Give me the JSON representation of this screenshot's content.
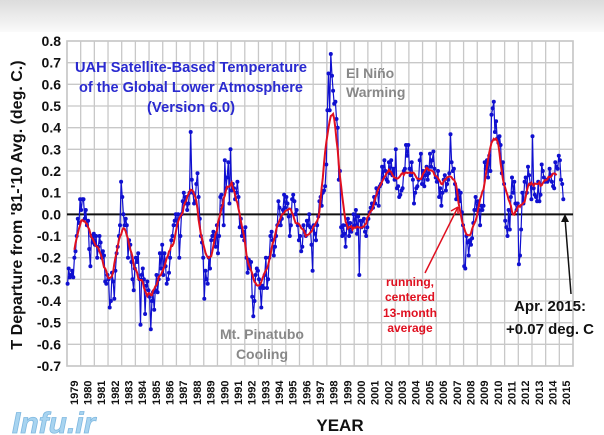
{
  "chart_data": {
    "type": "line",
    "title": [
      "UAH Satellite-Based Temperature",
      "of the Global Lower Atmosphere",
      "(Version 6.0)"
    ],
    "xlabel": "YEAR",
    "ylabel": "T Departure from '81-'10 Avg. (deg. C.)",
    "ylim": [
      -0.7,
      0.8
    ],
    "xlim": [
      1979,
      2016
    ],
    "y_ticks": [
      "0.8",
      "0.7",
      "0.6",
      "0.5",
      "0.4",
      "0.3",
      "0.2",
      "0.1",
      "0.0",
      "-0.1",
      "-0.2",
      "-0.3",
      "-0.4",
      "-0.5",
      "-0.6",
      "-0.7"
    ],
    "x_ticks": [
      "1979",
      "1980",
      "1981",
      "1982",
      "1983",
      "1984",
      "1985",
      "1986",
      "1987",
      "1988",
      "1989",
      "1990",
      "1991",
      "1992",
      "1993",
      "1994",
      "1995",
      "1996",
      "1997",
      "1998",
      "1999",
      "2000",
      "2001",
      "2002",
      "2003",
      "2004",
      "2005",
      "2006",
      "2007",
      "2008",
      "2009",
      "2010",
      "2011",
      "2012",
      "2013",
      "2014",
      "2015"
    ],
    "grid": true,
    "start": "1979-01",
    "series": [
      {
        "kind": "monthly",
        "color": "#1010d0",
        "values": [
          -0.32,
          -0.25,
          -0.29,
          -0.28,
          -0.26,
          -0.29,
          -0.2,
          -0.17,
          -0.1,
          -0.02,
          -0.04,
          0.07,
          0.02,
          0.07,
          0.07,
          -0.02,
          0.02,
          -0.05,
          -0.03,
          -0.16,
          -0.24,
          -0.1,
          -0.13,
          -0.09,
          -0.14,
          -0.1,
          -0.2,
          -0.15,
          -0.1,
          -0.13,
          -0.2,
          -0.17,
          -0.19,
          -0.31,
          -0.32,
          -0.28,
          -0.3,
          -0.43,
          -0.4,
          -0.27,
          -0.31,
          -0.39,
          -0.26,
          -0.18,
          -0.15,
          -0.1,
          -0.05,
          0.15,
          0.08,
          0.0,
          -0.05,
          -0.02,
          -0.05,
          -0.2,
          -0.12,
          -0.14,
          -0.22,
          -0.3,
          -0.35,
          -0.25,
          -0.2,
          -0.22,
          -0.18,
          -0.3,
          -0.51,
          -0.28,
          -0.25,
          -0.3,
          -0.46,
          -0.33,
          -0.31,
          -0.35,
          -0.38,
          -0.53,
          -0.4,
          -0.36,
          -0.44,
          -0.35,
          -0.28,
          -0.36,
          -0.3,
          -0.18,
          -0.25,
          -0.14,
          -0.28,
          -0.18,
          -0.24,
          -0.32,
          -0.3,
          -0.27,
          -0.2,
          -0.12,
          -0.1,
          -0.05,
          -0.03,
          0.0,
          -0.05,
          0.0,
          -0.2,
          -0.1,
          0.0,
          0.06,
          0.1,
          0.05,
          0.08,
          0.02,
          0.05,
          0.1,
          0.38,
          0.16,
          0.1,
          0.05,
          0.06,
          0.14,
          0.19,
          0.08,
          -0.02,
          -0.1,
          -0.13,
          -0.2,
          -0.39,
          -0.26,
          -0.3,
          -0.32,
          -0.2,
          -0.25,
          -0.12,
          -0.1,
          -0.08,
          -0.12,
          -0.15,
          -0.05,
          -0.18,
          -0.1,
          0.08,
          0.09,
          0.04,
          -0.05,
          0.25,
          0.12,
          0.17,
          0.24,
          0.05,
          0.3,
          0.11,
          0.14,
          0.12,
          0.07,
          0.1,
          0.15,
          0.08,
          -0.06,
          -0.02,
          -0.1,
          -0.08,
          -0.12,
          -0.06,
          -0.2,
          -0.27,
          -0.21,
          -0.25,
          -0.22,
          -0.38,
          -0.47,
          -0.4,
          -0.28,
          -0.25,
          -0.26,
          -0.3,
          -0.34,
          -0.43,
          -0.33,
          -0.34,
          -0.28,
          -0.2,
          -0.34,
          -0.3,
          -0.2,
          -0.1,
          -0.08,
          -0.12,
          -0.19,
          -0.15,
          -0.1,
          -0.05,
          0.06,
          0.03,
          -0.05,
          -0.02,
          0.02,
          0.09,
          0.03,
          0.08,
          0.05,
          -0.01,
          -0.1,
          -0.05,
          0.07,
          0.09,
          0.06,
          0.0,
          0.02,
          -0.05,
          -0.12,
          -0.1,
          -0.17,
          -0.15,
          -0.05,
          -0.08,
          -0.1,
          -0.03,
          -0.05,
          0.0,
          -0.06,
          -0.14,
          -0.26,
          -0.05,
          -0.09,
          -0.12,
          -0.05,
          -0.01,
          0.06,
          0.08,
          0.04,
          0.1,
          0.11,
          0.13,
          0.23,
          0.48,
          0.65,
          0.48,
          0.74,
          0.64,
          0.57,
          0.51,
          0.52,
          0.44,
          0.4,
          0.16,
          0.2,
          -0.06,
          -0.1,
          -0.05,
          -0.09,
          -0.15,
          -0.05,
          -0.02,
          -0.1,
          -0.04,
          -0.08,
          -0.06,
          0.0,
          -0.05,
          0.02,
          -0.09,
          -0.01,
          -0.28,
          -0.03,
          -0.06,
          -0.03,
          -0.02,
          -0.08,
          -0.1,
          -0.06,
          -0.02,
          0.01,
          0.03,
          0.05,
          0.03,
          0.08,
          0.05,
          0.12,
          0.1,
          0.04,
          0.13,
          0.14,
          0.22,
          0.17,
          0.25,
          0.2,
          0.16,
          0.15,
          0.24,
          0.19,
          0.25,
          0.18,
          0.21,
          0.16,
          0.3,
          0.12,
          0.13,
          0.08,
          0.09,
          0.11,
          0.12,
          0.2,
          0.21,
          0.32,
          0.27,
          0.32,
          0.21,
          0.18,
          0.24,
          0.16,
          0.05,
          0.1,
          0.12,
          0.13,
          0.16,
          0.25,
          0.28,
          0.14,
          0.2,
          0.13,
          0.18,
          0.22,
          0.16,
          0.19,
          0.28,
          0.22,
          0.25,
          0.29,
          0.21,
          0.17,
          0.15,
          0.2,
          0.08,
          0.12,
          0.04,
          0.1,
          0.16,
          0.18,
          0.11,
          0.14,
          0.16,
          0.19,
          0.37,
          0.24,
          0.2,
          0.21,
          0.14,
          0.07,
          0.1,
          0.11,
          0.06,
          0.1,
          0.01,
          -0.05,
          -0.24,
          -0.25,
          -0.1,
          -0.13,
          -0.19,
          -0.12,
          -0.14,
          -0.11,
          -0.04,
          0.02,
          0.08,
          0.02,
          0.06,
          0.02,
          -0.05,
          0.04,
          0.02,
          0.04,
          0.24,
          0.21,
          0.25,
          0.17,
          0.27,
          0.2,
          0.46,
          0.49,
          0.52,
          0.38,
          0.43,
          0.35,
          0.33,
          0.36,
          0.32,
          0.19,
          0.24,
          0.14,
          -0.03,
          -0.06,
          -0.1,
          0.02,
          -0.07,
          0.08,
          0.17,
          0.1,
          0.15,
          0.05,
          0.02,
          0.05,
          -0.23,
          -0.19,
          -0.07,
          0.1,
          0.05,
          0.15,
          0.17,
          0.1,
          0.22,
          0.18,
          0.14,
          0.07,
          0.36,
          0.12,
          0.09,
          0.08,
          0.06,
          0.15,
          0.06,
          0.09,
          0.23,
          0.2,
          0.17,
          0.15,
          0.16,
          0.15,
          0.16,
          0.21,
          0.18,
          0.15,
          0.13,
          0.12,
          0.24,
          0.22,
          0.21,
          0.27,
          0.25,
          0.16,
          0.14,
          0.07
        ]
      },
      {
        "kind": "running-13-month-centered",
        "color": "#e01020"
      }
    ],
    "annotations": {
      "el_nino": [
        "El Niño",
        "Warming"
      ],
      "pinatubo": [
        "Mt. Pinatubo",
        "Cooling"
      ],
      "running": [
        "running,",
        "centered",
        "13-month",
        "average"
      ],
      "latest": [
        "Apr. 2015:",
        "+0.07 deg. C"
      ]
    }
  },
  "watermark": "Infu.ir"
}
